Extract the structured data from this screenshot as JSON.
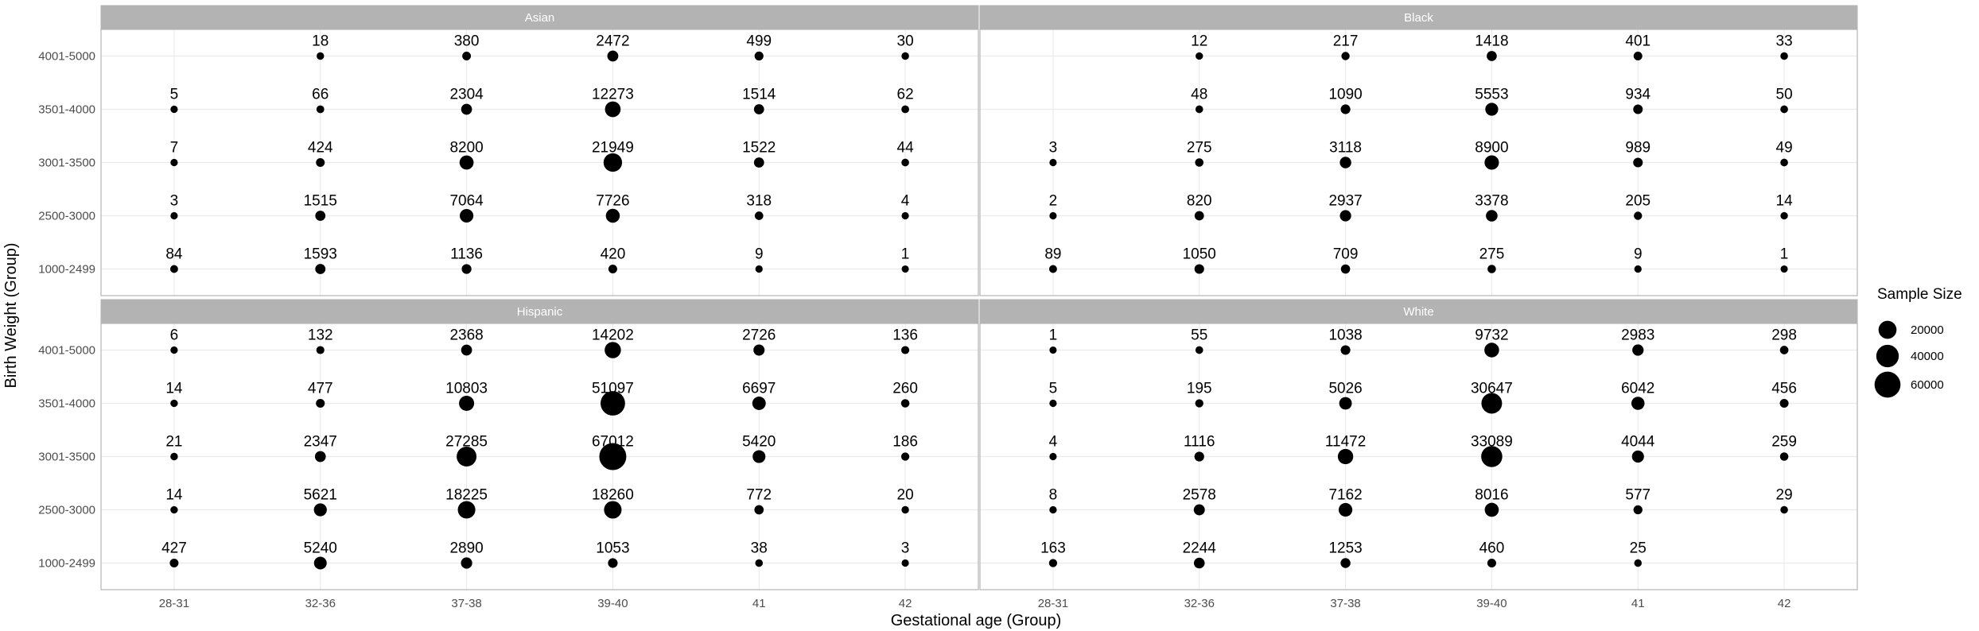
{
  "chart_data": {
    "type": "scatter",
    "subtype": "faceted-bubble",
    "xlabel": "Gestational age (Group)",
    "ylabel": "Birth Weight (Group)",
    "x_categories": [
      "28-31",
      "32-36",
      "37-38",
      "39-40",
      "41",
      "42"
    ],
    "y_categories": [
      "1000-2499",
      "2500-3000",
      "3001-3500",
      "3501-4000",
      "4001-5000"
    ],
    "legend": {
      "title": "Sample Size",
      "entries": [
        {
          "label": "20000",
          "value": 20000
        },
        {
          "label": "40000",
          "value": 40000
        },
        {
          "label": "60000",
          "value": 60000
        }
      ],
      "position": "right"
    },
    "grid": true,
    "facets": [
      {
        "name": "Asian",
        "values": {
          "4001-5000": [
            null,
            18,
            380,
            2472,
            499,
            30
          ],
          "3501-4000": [
            5,
            66,
            2304,
            12273,
            1514,
            62
          ],
          "3001-3500": [
            7,
            424,
            8200,
            21949,
            1522,
            44
          ],
          "2500-3000": [
            3,
            1515,
            7064,
            7726,
            318,
            4
          ],
          "1000-2499": [
            84,
            1593,
            1136,
            420,
            9,
            1
          ]
        }
      },
      {
        "name": "Black",
        "values": {
          "4001-5000": [
            null,
            12,
            217,
            1418,
            401,
            33
          ],
          "3501-4000": [
            null,
            48,
            1090,
            5553,
            934,
            50
          ],
          "3001-3500": [
            3,
            275,
            3118,
            8900,
            989,
            49
          ],
          "2500-3000": [
            2,
            820,
            2937,
            3378,
            205,
            14
          ],
          "1000-2499": [
            89,
            1050,
            709,
            275,
            9,
            1
          ]
        }
      },
      {
        "name": "Hispanic",
        "values": {
          "4001-5000": [
            6,
            132,
            2368,
            14202,
            2726,
            136
          ],
          "3501-4000": [
            14,
            477,
            10803,
            51097,
            6697,
            260
          ],
          "3001-3500": [
            21,
            2347,
            27285,
            67012,
            5420,
            186
          ],
          "2500-3000": [
            14,
            5621,
            18225,
            18260,
            772,
            20
          ],
          "1000-2499": [
            427,
            5240,
            2890,
            1053,
            38,
            3
          ]
        }
      },
      {
        "name": "White",
        "values": {
          "4001-5000": [
            1,
            55,
            1038,
            9732,
            2983,
            298
          ],
          "3501-4000": [
            5,
            195,
            5026,
            30647,
            6042,
            456
          ],
          "3001-3500": [
            4,
            1116,
            11472,
            33089,
            4044,
            259
          ],
          "2500-3000": [
            8,
            2578,
            7162,
            8016,
            577,
            29
          ],
          "1000-2499": [
            163,
            2244,
            1253,
            460,
            25,
            null
          ]
        }
      }
    ]
  }
}
